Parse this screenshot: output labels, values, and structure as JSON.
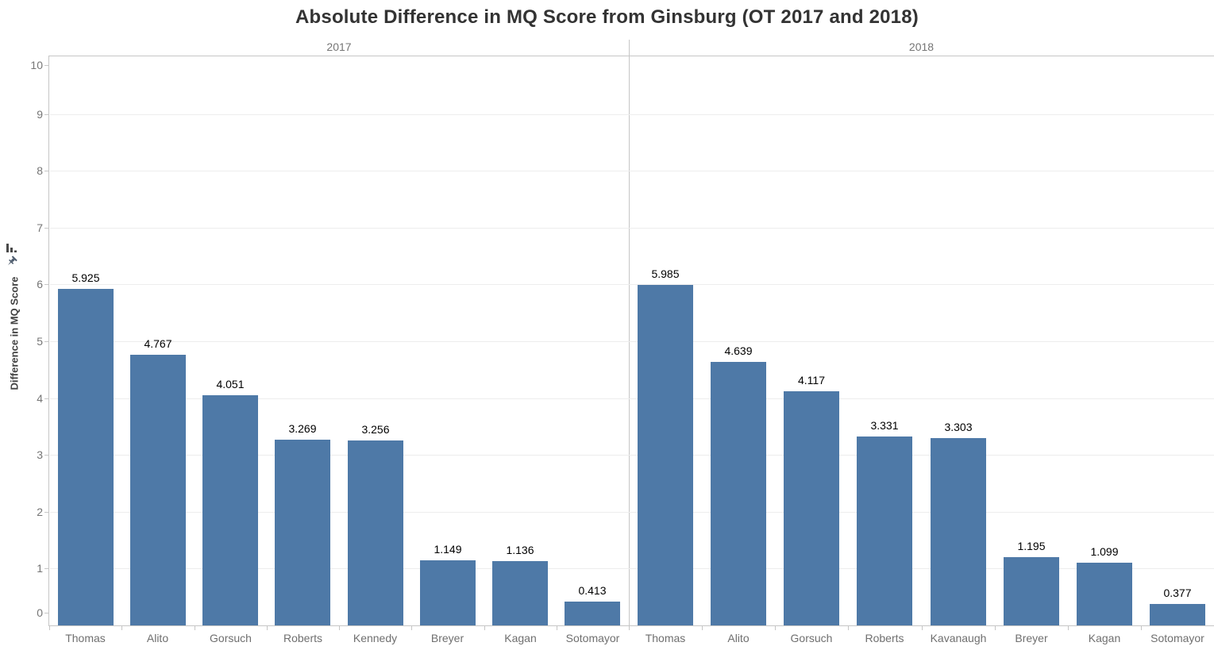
{
  "title": "Absolute Difference in MQ Score from Ginsburg (OT 2017 and 2018)",
  "y_axis": {
    "label": "Difference in MQ Score",
    "ticks": [
      0,
      1,
      2,
      3,
      4,
      5,
      6,
      7,
      8,
      9,
      10
    ]
  },
  "icons": {
    "sort": "sort-bars-icon",
    "pin": "pin-icon"
  },
  "colors": {
    "bar": "#4e79a7",
    "grid": "#ededed",
    "axis_line": "#c6c6c6",
    "tick_text": "#757575",
    "category_text": "#6f6f6f",
    "value_text": "#000000",
    "title_text": "#333333"
  },
  "chart_data": {
    "type": "bar",
    "title": "Absolute Difference in MQ Score from Ginsburg (OT 2017 and 2018)",
    "ylabel": "Difference in MQ Score",
    "xlabel": "",
    "ylim": [
      0,
      10
    ],
    "grid": true,
    "legend": false,
    "panels": [
      {
        "label": "2017",
        "categories": [
          "Thomas",
          "Alito",
          "Gorsuch",
          "Roberts",
          "Kennedy",
          "Breyer",
          "Kagan",
          "Sotomayor"
        ],
        "values": [
          5.925,
          4.767,
          4.051,
          3.269,
          3.256,
          1.149,
          1.136,
          0.413
        ],
        "value_labels": [
          "5.925",
          "4.767",
          "4.051",
          "3.269",
          "3.256",
          "1.149",
          "1.136",
          "0.413"
        ]
      },
      {
        "label": "2018",
        "categories": [
          "Thomas",
          "Alito",
          "Gorsuch",
          "Roberts",
          "Kavanaugh",
          "Breyer",
          "Kagan",
          "Sotomayor"
        ],
        "values": [
          5.985,
          4.639,
          4.117,
          3.331,
          3.303,
          1.195,
          1.099,
          0.377
        ],
        "value_labels": [
          "5.985",
          "4.639",
          "4.117",
          "3.331",
          "3.303",
          "1.195",
          "1.099",
          "0.377"
        ]
      }
    ]
  }
}
